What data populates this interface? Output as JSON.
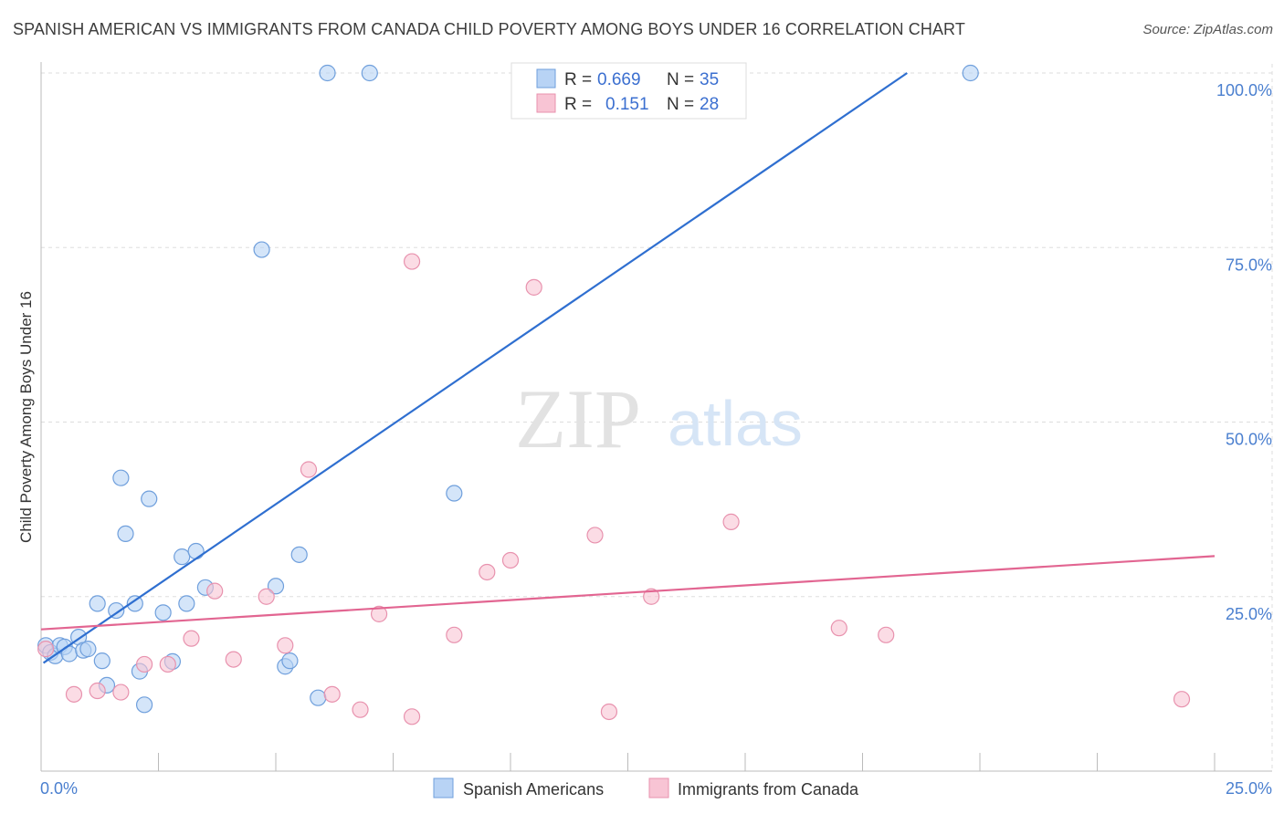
{
  "title": "SPANISH AMERICAN VS IMMIGRANTS FROM CANADA CHILD POVERTY AMONG BOYS UNDER 16 CORRELATION CHART",
  "source": "Source: ZipAtlas.com",
  "watermark": {
    "zip": "ZIP",
    "atlas": "atlas"
  },
  "colors": {
    "blue_fill": "#b8d3f5",
    "blue_stroke": "#6f9fdc",
    "blue_line": "#2f6fd0",
    "pink_fill": "#f8c4d4",
    "pink_stroke": "#e892ae",
    "pink_line": "#e26591",
    "grid": "#dddddd",
    "tick_text": "#4a7fcf"
  },
  "chart_data": {
    "type": "scatter",
    "title": "SPANISH AMERICAN VS IMMIGRANTS FROM CANADA CHILD POVERTY AMONG BOYS UNDER 16 CORRELATION CHART",
    "xlabel": "",
    "ylabel": "Child Poverty Among Boys Under 16",
    "xlim": [
      0,
      25
    ],
    "ylim": [
      0,
      100
    ],
    "x_tick_labels": {
      "min": "0.0%",
      "max": "25.0%"
    },
    "y_ticks": [
      {
        "value": 25,
        "label": "25.0%"
      },
      {
        "value": 50,
        "label": "50.0%"
      },
      {
        "value": 75,
        "label": "75.0%"
      },
      {
        "value": 100,
        "label": "100.0%"
      }
    ],
    "grid": true,
    "legend": {
      "position": "top-center",
      "entries": [
        {
          "r_label": "R =",
          "r_value": "0.669",
          "n_label": "N =",
          "n_value": "35"
        },
        {
          "r_label": "R =",
          "r_value": "0.151",
          "n_label": "N =",
          "n_value": "28"
        }
      ]
    },
    "series": [
      {
        "name": "Spanish Americans",
        "color": "blue",
        "trend": {
          "x": [
            0.05,
            18.45
          ],
          "y": [
            15.5,
            100
          ]
        },
        "points": [
          [
            0.1,
            18
          ],
          [
            0.2,
            17
          ],
          [
            0.3,
            16.5
          ],
          [
            0.4,
            18
          ],
          [
            0.5,
            17.8
          ],
          [
            0.6,
            16.8
          ],
          [
            0.8,
            19.2
          ],
          [
            0.9,
            17.3
          ],
          [
            1.0,
            17.5
          ],
          [
            1.2,
            24
          ],
          [
            1.3,
            15.8
          ],
          [
            1.4,
            12.3
          ],
          [
            1.6,
            23
          ],
          [
            1.7,
            42
          ],
          [
            1.8,
            34
          ],
          [
            2.0,
            24
          ],
          [
            2.1,
            14.3
          ],
          [
            2.2,
            9.5
          ],
          [
            2.3,
            39
          ],
          [
            2.6,
            22.7
          ],
          [
            2.8,
            15.7
          ],
          [
            3.0,
            30.7
          ],
          [
            3.1,
            24
          ],
          [
            3.3,
            31.5
          ],
          [
            3.5,
            26.3
          ],
          [
            4.7,
            74.7
          ],
          [
            5.0,
            26.5
          ],
          [
            5.2,
            15
          ],
          [
            5.3,
            15.8
          ],
          [
            5.5,
            31
          ],
          [
            5.9,
            10.5
          ],
          [
            6.1,
            100
          ],
          [
            7.0,
            100
          ],
          [
            8.8,
            39.8
          ],
          [
            19.8,
            100
          ]
        ]
      },
      {
        "name": "Immigrants from Canada",
        "color": "pink",
        "trend": {
          "x": [
            0,
            25
          ],
          "y": [
            20.3,
            30.8
          ]
        },
        "points": [
          [
            0.1,
            17.5
          ],
          [
            0.7,
            11
          ],
          [
            1.2,
            11.5
          ],
          [
            1.7,
            11.3
          ],
          [
            2.2,
            15.3
          ],
          [
            2.7,
            15.3
          ],
          [
            3.2,
            19
          ],
          [
            3.7,
            25.8
          ],
          [
            4.1,
            16
          ],
          [
            4.8,
            25
          ],
          [
            5.2,
            18
          ],
          [
            5.7,
            43.2
          ],
          [
            6.2,
            11
          ],
          [
            6.8,
            8.8
          ],
          [
            7.2,
            22.5
          ],
          [
            7.9,
            73
          ],
          [
            7.9,
            7.8
          ],
          [
            8.8,
            19.5
          ],
          [
            9.5,
            28.5
          ],
          [
            10.0,
            30.2
          ],
          [
            10.5,
            69.3
          ],
          [
            11.8,
            33.8
          ],
          [
            12.1,
            8.5
          ],
          [
            13.0,
            25
          ],
          [
            14.7,
            35.7
          ],
          [
            17.0,
            20.5
          ],
          [
            18.0,
            19.5
          ],
          [
            24.3,
            10.3
          ]
        ]
      }
    ]
  }
}
